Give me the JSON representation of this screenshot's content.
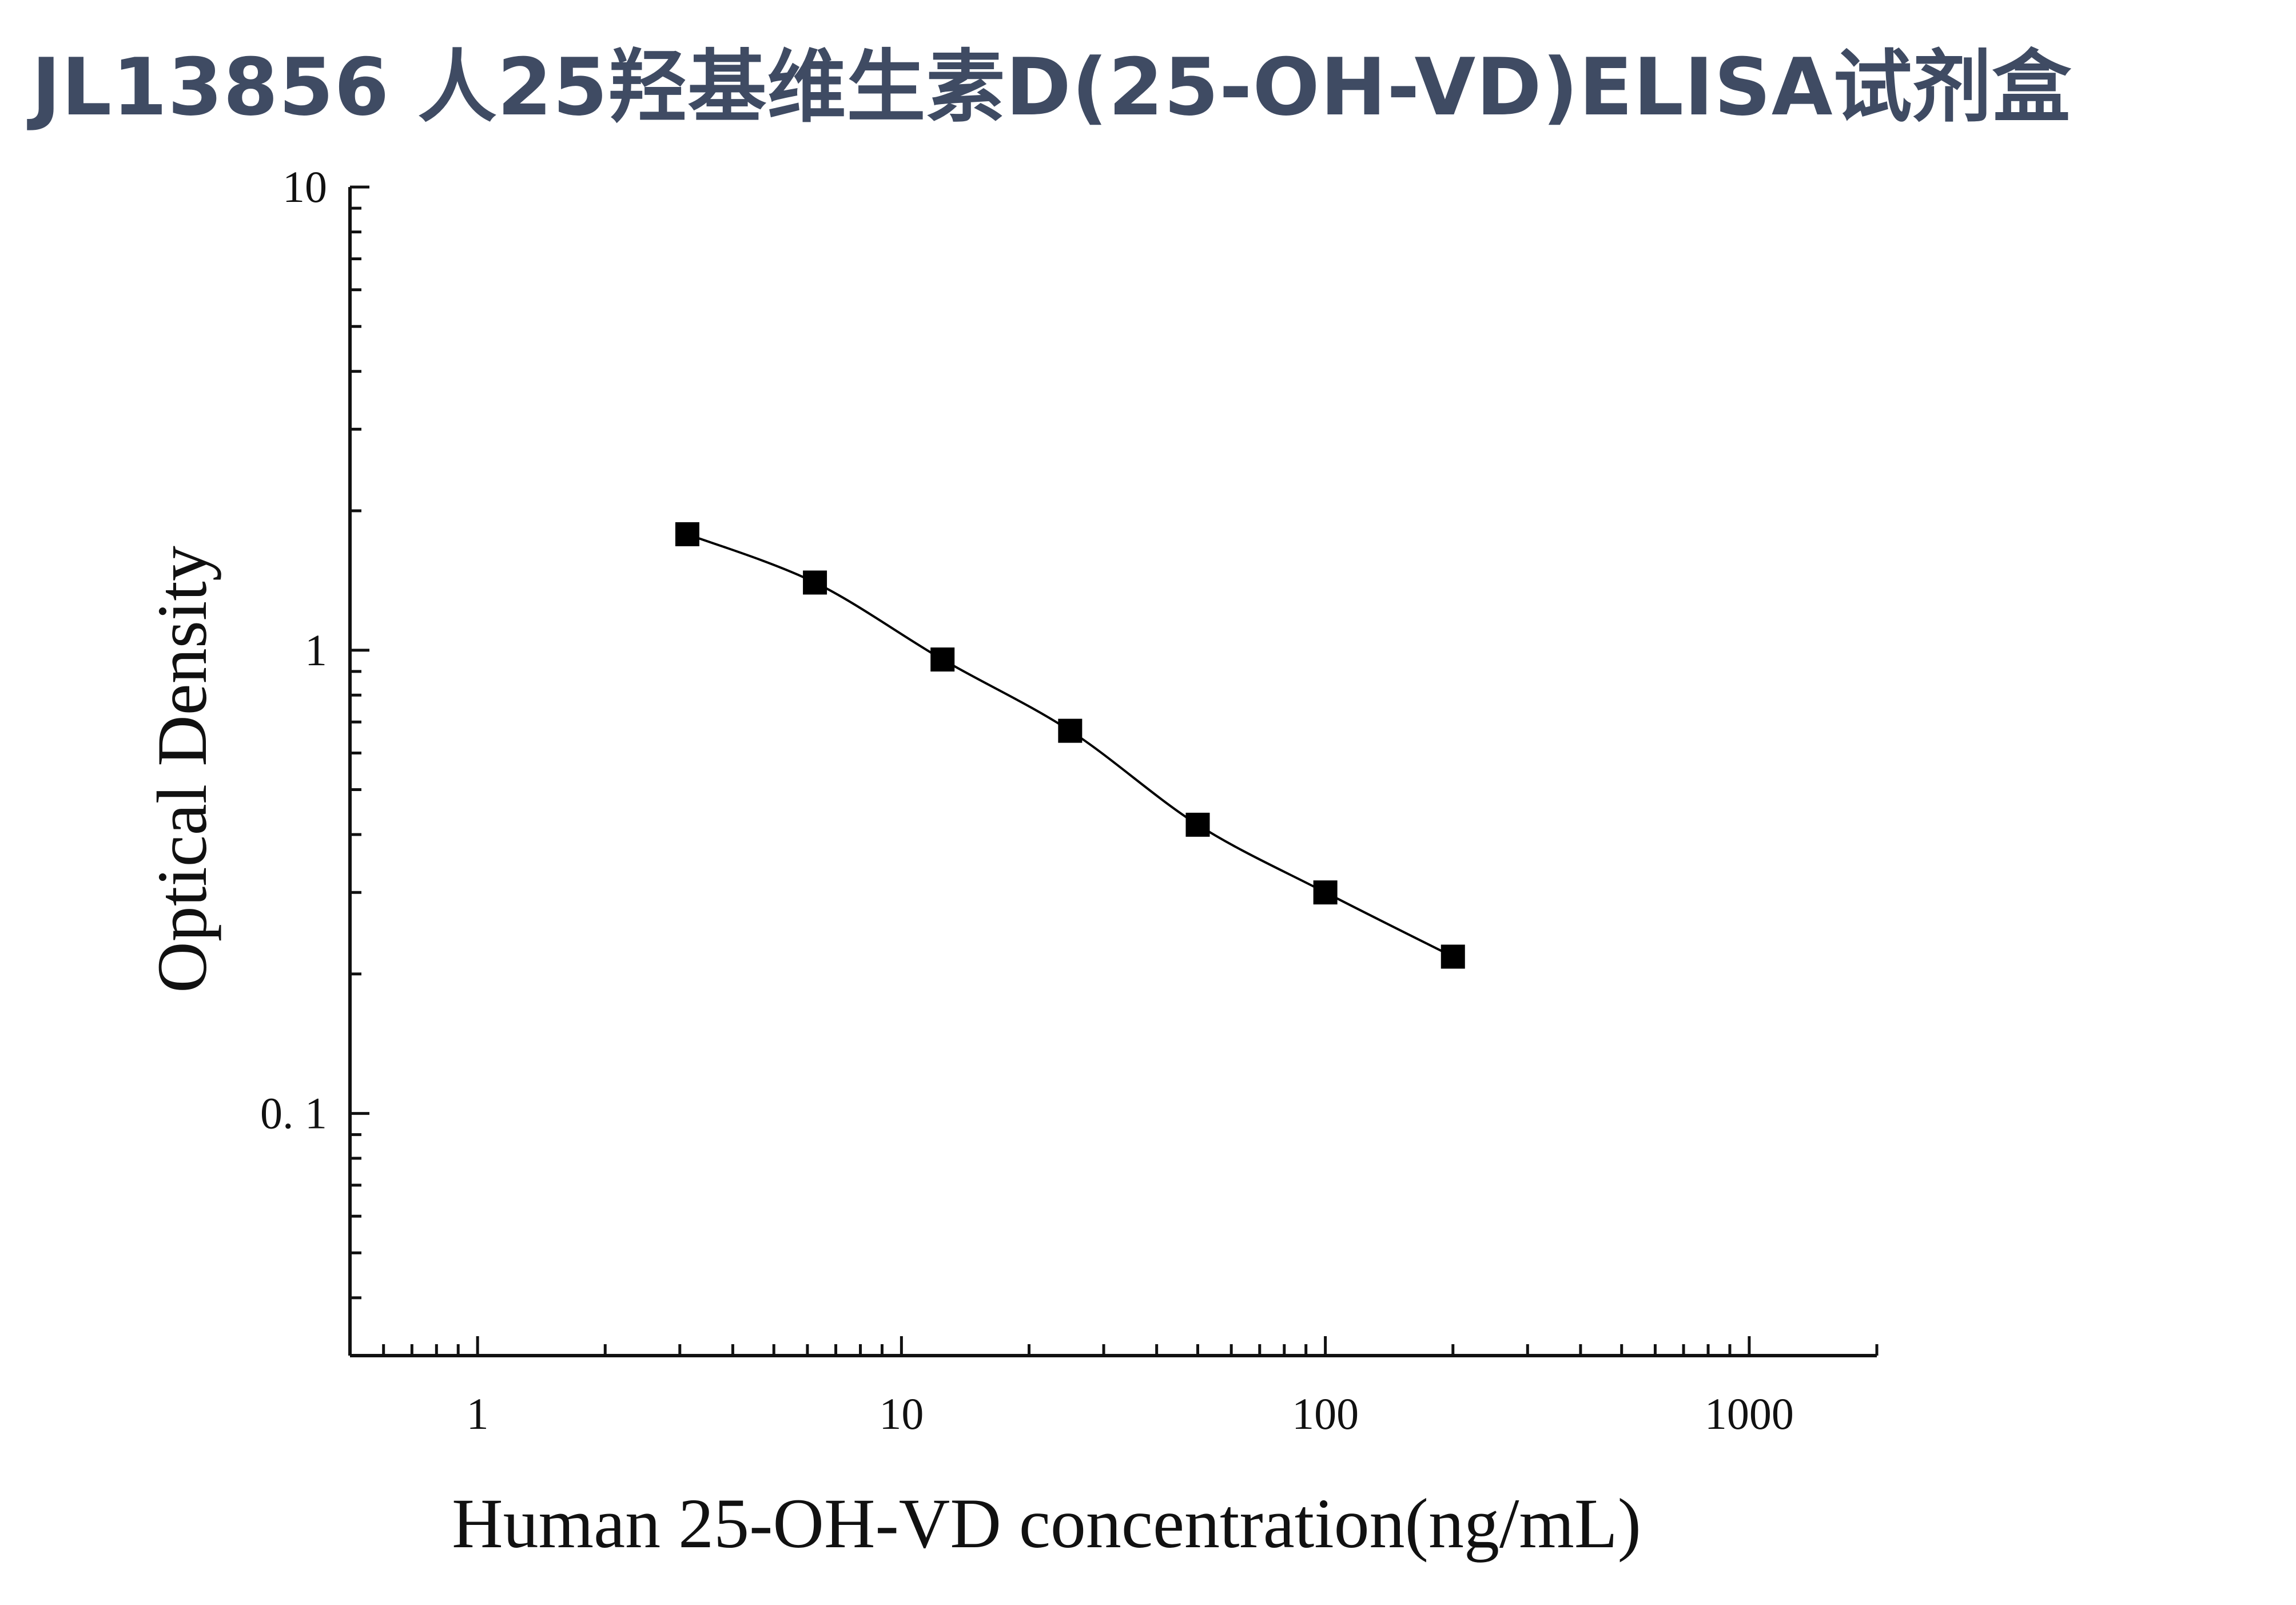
{
  "title": "JL13856 人25羟基维生素D(25-OH-VD)ELISA试剂盒",
  "chart_data": {
    "type": "scatter",
    "xlabel": "Human 25-OH-VD concentration(ng/mL)",
    "ylabel": "Optical Density",
    "xscale": "log",
    "yscale": "log",
    "xlim": [
      0.5,
      2000
    ],
    "ylim": [
      0.03,
      10
    ],
    "xticks": [
      {
        "value": 1,
        "label": "1"
      },
      {
        "value": 10,
        "label": "10"
      },
      {
        "value": 100,
        "label": "100"
      },
      {
        "value": 1000,
        "label": "1000"
      }
    ],
    "yticks": [
      {
        "value": 0.1,
        "label": "0. 1"
      },
      {
        "value": 1,
        "label": "1"
      },
      {
        "value": 10,
        "label": "10"
      }
    ],
    "grid": false,
    "fit_curve": true,
    "marker": "square",
    "color": "#000000",
    "series": [
      {
        "x": [
          3.125,
          6.25,
          12.5,
          25,
          50,
          100,
          200
        ],
        "y": [
          1.78,
          1.4,
          0.955,
          0.67,
          0.42,
          0.3,
          0.218
        ]
      }
    ]
  }
}
